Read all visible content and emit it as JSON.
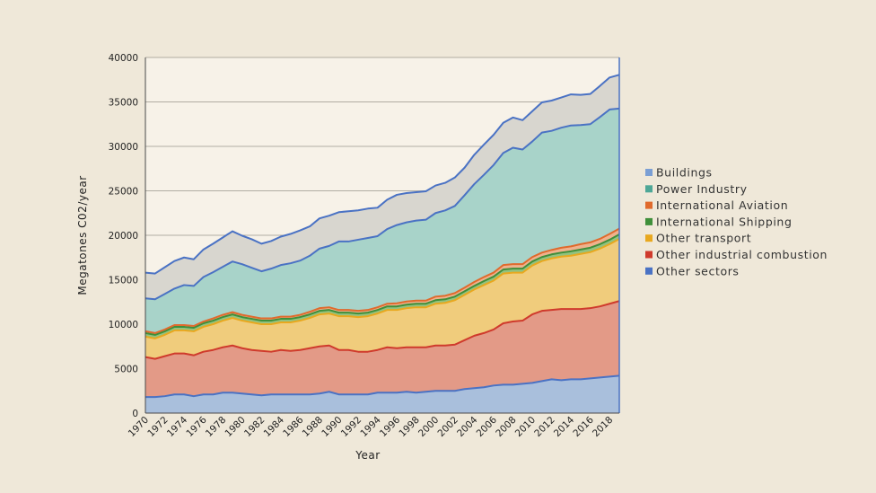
{
  "chart_data": {
    "type": "area",
    "stacked": true,
    "title": "",
    "xlabel": "Year",
    "ylabel": "Megatones C02/year",
    "ylim": [
      0,
      40000
    ],
    "yticks": [
      0,
      5000,
      10000,
      15000,
      20000,
      25000,
      30000,
      35000,
      40000
    ],
    "xticks": [
      1970,
      1972,
      1974,
      1976,
      1978,
      1980,
      1982,
      1984,
      1986,
      1988,
      1990,
      1992,
      1994,
      1996,
      1998,
      2000,
      2002,
      2004,
      2006,
      2008,
      2010,
      2012,
      2014,
      2016,
      2018
    ],
    "grid": true,
    "legend_position": "right",
    "x": [
      1970,
      1971,
      1972,
      1973,
      1974,
      1975,
      1976,
      1977,
      1978,
      1979,
      1980,
      1981,
      1982,
      1983,
      1984,
      1985,
      1986,
      1987,
      1988,
      1989,
      1990,
      1991,
      1992,
      1993,
      1994,
      1995,
      1996,
      1997,
      1998,
      1999,
      2000,
      2001,
      2002,
      2003,
      2004,
      2005,
      2006,
      2007,
      2008,
      2009,
      2010,
      2011,
      2012,
      2013,
      2014,
      2015,
      2016,
      2017,
      2018,
      2019
    ],
    "series": [
      {
        "name": "Other sectors",
        "fill": "#a9bfdc",
        "line": "#4a72c4",
        "values": [
          1800,
          1800,
          1900,
          2100,
          2100,
          1900,
          2100,
          2100,
          2300,
          2300,
          2200,
          2100,
          2000,
          2100,
          2100,
          2100,
          2100,
          2100,
          2200,
          2400,
          2100,
          2100,
          2100,
          2100,
          2300,
          2300,
          2300,
          2400,
          2300,
          2400,
          2500,
          2500,
          2500,
          2700,
          2800,
          2900,
          3100,
          3200,
          3200,
          3300,
          3400,
          3600,
          3800,
          3700,
          3800,
          3800,
          3900,
          4000,
          4100,
          4200
        ]
      },
      {
        "name": "Other industrial combustion",
        "fill": "#e39a87",
        "line": "#cf3a2c",
        "values": [
          4500,
          4300,
          4500,
          4600,
          4600,
          4600,
          4800,
          5000,
          5100,
          5300,
          5100,
          5000,
          5000,
          4800,
          5000,
          4900,
          5000,
          5200,
          5300,
          5200,
          5000,
          5000,
          4800,
          4800,
          4800,
          5100,
          5000,
          5000,
          5100,
          5000,
          5100,
          5100,
          5200,
          5500,
          5900,
          6100,
          6300,
          6900,
          7100,
          7100,
          7700,
          7900,
          7800,
          8000,
          7900,
          7900,
          7900,
          8000,
          8200,
          8400
        ]
      },
      {
        "name": "Other transport",
        "fill": "#f0cc7c",
        "line": "#e8a81f",
        "values": [
          2300,
          2300,
          2400,
          2600,
          2600,
          2700,
          2800,
          2900,
          3000,
          3100,
          3100,
          3100,
          3000,
          3100,
          3100,
          3200,
          3300,
          3400,
          3600,
          3600,
          3800,
          3800,
          3900,
          4000,
          4100,
          4200,
          4300,
          4400,
          4500,
          4500,
          4700,
          4800,
          5000,
          5100,
          5200,
          5400,
          5500,
          5600,
          5500,
          5400,
          5500,
          5600,
          5800,
          5900,
          6000,
          6200,
          6300,
          6500,
          6700,
          7000
        ]
      },
      {
        "name": "International Shipping",
        "fill": "#93c27f",
        "line": "#3f8f3a",
        "values": [
          400,
          400,
          400,
          400,
          400,
          400,
          400,
          400,
          400,
          400,
          400,
          400,
          400,
          400,
          400,
          400,
          400,
          400,
          400,
          400,
          400,
          400,
          400,
          400,
          400,
          400,
          400,
          400,
          400,
          400,
          400,
          400,
          400,
          400,
          400,
          450,
          450,
          450,
          450,
          450,
          450,
          450,
          450,
          450,
          500,
          500,
          500,
          500,
          500,
          500
        ]
      },
      {
        "name": "International Aviation",
        "fill": "#efb28d",
        "line": "#e06a2c",
        "values": [
          200,
          200,
          200,
          200,
          200,
          200,
          200,
          250,
          250,
          250,
          250,
          250,
          250,
          250,
          250,
          250,
          250,
          300,
          300,
          300,
          300,
          300,
          300,
          300,
          300,
          300,
          350,
          350,
          350,
          350,
          400,
          400,
          400,
          400,
          450,
          450,
          450,
          500,
          500,
          500,
          500,
          500,
          500,
          550,
          550,
          600,
          600,
          600,
          650,
          650
        ]
      },
      {
        "name": "Power Industry",
        "fill": "#a8d3c9",
        "line": "#4a72c4",
        "values": [
          3700,
          3800,
          4000,
          4100,
          4500,
          4500,
          5000,
          5200,
          5400,
          5700,
          5700,
          5500,
          5300,
          5600,
          5800,
          6000,
          6100,
          6300,
          6700,
          6900,
          7700,
          7700,
          8000,
          8100,
          8000,
          8400,
          8800,
          8900,
          9000,
          9100,
          9400,
          9600,
          9800,
          10400,
          11000,
          11500,
          12100,
          12600,
          13100,
          12900,
          13000,
          13500,
          13400,
          13500,
          13600,
          13400,
          13300,
          13700,
          14000,
          13500
        ]
      },
      {
        "name": "Buildings",
        "fill": "#d8d6cf",
        "line": "#4a72c4",
        "values": [
          2900,
          2900,
          3000,
          3100,
          3100,
          3000,
          3100,
          3200,
          3300,
          3400,
          3200,
          3200,
          3100,
          3100,
          3200,
          3300,
          3400,
          3300,
          3400,
          3400,
          3300,
          3400,
          3300,
          3300,
          3200,
          3300,
          3400,
          3300,
          3200,
          3200,
          3100,
          3100,
          3200,
          3100,
          3300,
          3400,
          3400,
          3400,
          3400,
          3300,
          3400,
          3400,
          3400,
          3400,
          3500,
          3400,
          3400,
          3500,
          3600,
          3800
        ]
      }
    ],
    "legend_order": [
      "Buildings",
      "Power Industry",
      "International Aviation",
      "International Shipping",
      "Other transport",
      "Other industrial combustion",
      "Other sectors"
    ],
    "legend_colors": {
      "Buildings": "#7b9fd4",
      "Power Industry": "#4ea797",
      "International Aviation": "#e06a2c",
      "International Shipping": "#3f8f3a",
      "Other transport": "#e8a81f",
      "Other industrial combustion": "#cf3a2c",
      "Other sectors": "#4a72c4"
    },
    "plot_background": "#f7f2e8"
  }
}
